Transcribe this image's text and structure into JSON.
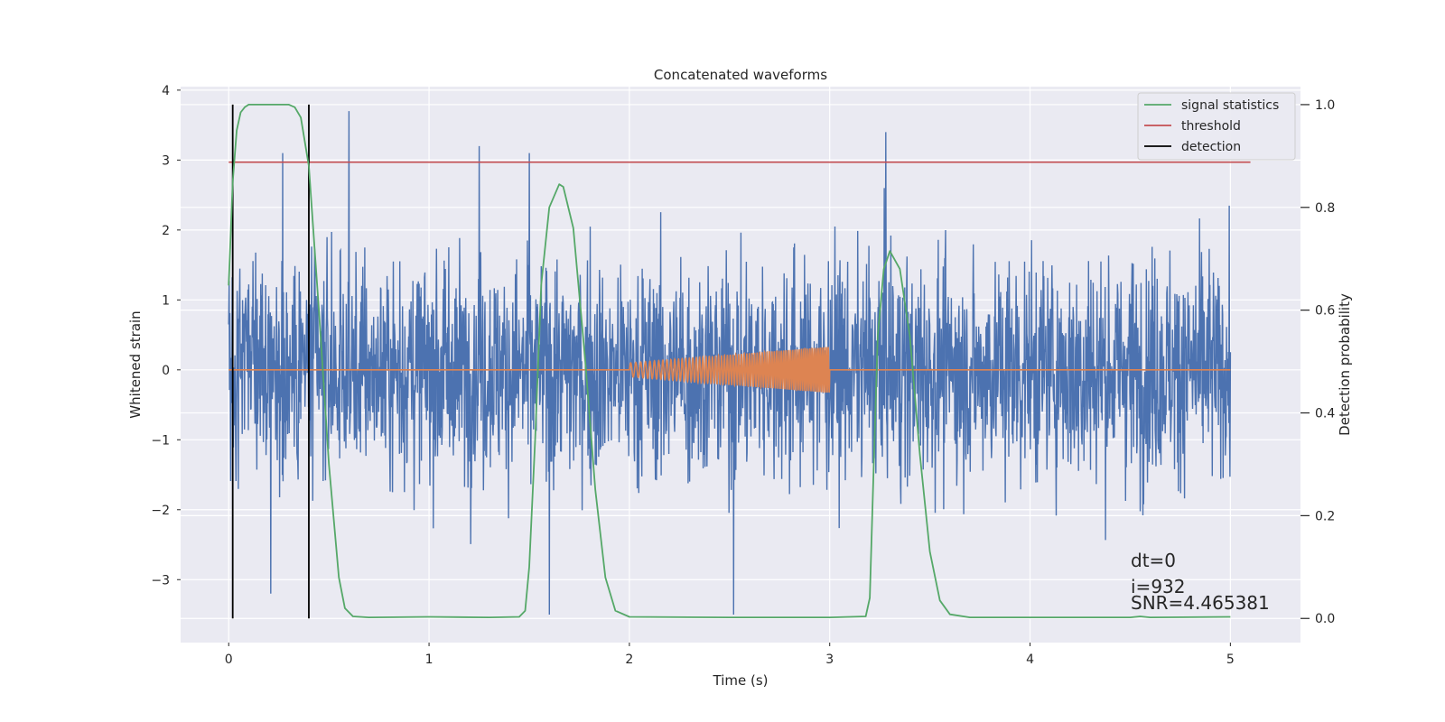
{
  "chart_data": {
    "type": "line",
    "title": "Concatenated waveforms",
    "xlabel": "Time (s)",
    "ylabel_left": "Whitened strain",
    "ylabel_right": "Detection probability",
    "xlim": [
      -0.24,
      5.35
    ],
    "ylim_left": [
      -3.9,
      4.05
    ],
    "ylim_right": [
      -0.047,
      1.035
    ],
    "x_ticks": [
      0,
      1,
      2,
      3,
      4,
      5
    ],
    "x_tick_labels": [
      "0",
      "1",
      "2",
      "3",
      "4",
      "5"
    ],
    "y_left_ticks": [
      -3,
      -2,
      -1,
      0,
      1,
      2,
      3,
      4
    ],
    "y_left_tick_labels": [
      "−3",
      "−2",
      "−1",
      "0",
      "1",
      "2",
      "3",
      "4"
    ],
    "y_right_ticks": [
      0.0,
      0.2,
      0.4,
      0.6,
      0.8,
      1.0
    ],
    "y_right_tick_labels": [
      "0.0",
      "0.2",
      "0.4",
      "0.6",
      "0.8",
      "1.0"
    ],
    "grid": true,
    "legend_position": "top-right",
    "legend": [
      {
        "label": "signal statistics",
        "color": "#55a868"
      },
      {
        "label": "threshold",
        "color": "#c44e52"
      },
      {
        "label": "detection",
        "color": "#000000"
      }
    ],
    "series": [
      {
        "role": "strain",
        "axis": "left",
        "color": "#4c72b0",
        "x_range": [
          0,
          5
        ],
        "noise_amplitude": 2.2,
        "extreme_spikes": [
          {
            "x": 0.6,
            "y": 3.7
          },
          {
            "x": 1.5,
            "y": 3.1
          },
          {
            "x": 1.6,
            "y": -3.5
          },
          {
            "x": 2.52,
            "y": -3.5
          },
          {
            "x": 3.28,
            "y": 3.4
          },
          {
            "x": 0.21,
            "y": -3.2
          },
          {
            "x": 1.25,
            "y": 3.2
          },
          {
            "x": 0.27,
            "y": 3.1
          }
        ]
      },
      {
        "role": "injected-signal",
        "axis": "left",
        "color": "#dd8452",
        "x_range": [
          0,
          5
        ],
        "chirp": {
          "start": 2.0,
          "end": 3.0,
          "amp_start": 0.1,
          "amp_end": 0.33
        }
      },
      {
        "name": "signal statistics",
        "axis": "right",
        "color": "#55a868",
        "x": [
          0,
          0.01,
          0.02,
          0.04,
          0.06,
          0.08,
          0.1,
          0.13,
          0.2,
          0.3,
          0.33,
          0.36,
          0.4,
          0.45,
          0.5,
          0.55,
          0.58,
          0.62,
          0.7,
          1.0,
          1.3,
          1.45,
          1.48,
          1.5,
          1.53,
          1.56,
          1.6,
          1.65,
          1.67,
          1.72,
          1.78,
          1.83,
          1.88,
          1.93,
          2.0,
          2.5,
          3.0,
          3.18,
          3.2,
          3.22,
          3.24,
          3.27,
          3.3,
          3.35,
          3.4,
          3.45,
          3.5,
          3.55,
          3.6,
          3.7,
          4.0,
          4.5,
          4.55,
          4.6,
          5.0
        ],
        "y": [
          0.648,
          0.75,
          0.85,
          0.95,
          0.985,
          0.995,
          1.0,
          1.0,
          1.0,
          1.0,
          0.995,
          0.975,
          0.88,
          0.6,
          0.3,
          0.08,
          0.02,
          0.004,
          0.002,
          0.003,
          0.002,
          0.003,
          0.015,
          0.1,
          0.35,
          0.65,
          0.8,
          0.845,
          0.84,
          0.76,
          0.5,
          0.25,
          0.08,
          0.015,
          0.003,
          0.002,
          0.002,
          0.004,
          0.04,
          0.3,
          0.55,
          0.68,
          0.715,
          0.68,
          0.55,
          0.32,
          0.13,
          0.035,
          0.008,
          0.002,
          0.002,
          0.002,
          0.004,
          0.002,
          0.003
        ]
      },
      {
        "name": "threshold",
        "axis": "left",
        "color": "#c44e52",
        "x": [
          0,
          5.1
        ],
        "y": [
          2.97,
          2.97
        ]
      }
    ],
    "detections": {
      "color": "#000000",
      "x": [
        0.02,
        0.4
      ],
      "y_range_right": [
        0.0,
        1.0
      ]
    },
    "annotations": [
      {
        "text": "dt=0",
        "x": 4.5,
        "y": 0.107
      },
      {
        "text": "i=932",
        "x": 4.5,
        "y": 0.056
      },
      {
        "text": "SNR=4.465381",
        "x": 4.5,
        "y": 0.015
      }
    ]
  }
}
